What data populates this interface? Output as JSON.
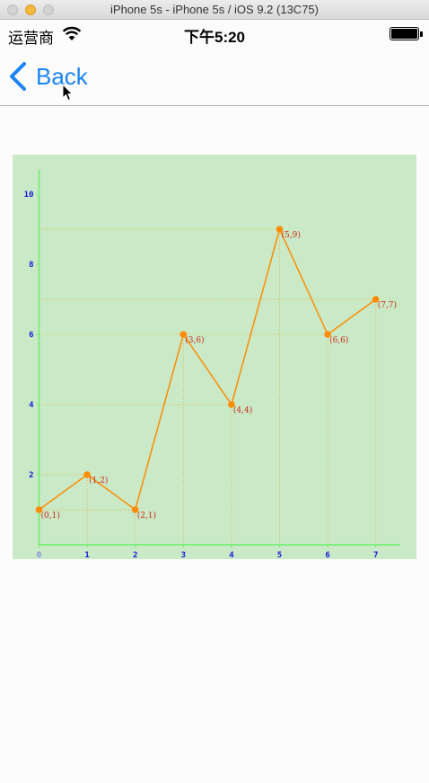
{
  "window": {
    "title": "iPhone 5s - iPhone 5s / iOS 9.2 (13C75)"
  },
  "status_bar": {
    "carrier": "运营商",
    "time": "下午5:20"
  },
  "nav": {
    "back_label": "Back"
  },
  "colors": {
    "chart_background": "#c9e9c7",
    "axis": "#6ef06a",
    "line": "#ff8c00",
    "point": "#ff8c00",
    "grid": "#e8b84a",
    "tick_text": "#1a1ad6",
    "point_label": "#d02a1a",
    "link": "#1a84f7"
  },
  "chart_data": {
    "type": "line",
    "x": [
      0,
      1,
      2,
      3,
      4,
      5,
      6,
      7
    ],
    "y": [
      1,
      2,
      1,
      6,
      4,
      9,
      6,
      7
    ],
    "point_labels": [
      "(0,1)",
      "(1,2)",
      "(2,1)",
      "(3,6)",
      "(4,4)",
      "(5,9)",
      "(6,6)",
      "(7,7)"
    ],
    "xticks": [
      "0",
      "1",
      "2",
      "3",
      "4",
      "5",
      "6",
      "7"
    ],
    "yticks": [
      "2",
      "4",
      "6",
      "8",
      "10"
    ],
    "ytick_values": [
      2,
      4,
      6,
      8,
      10
    ],
    "xlim": [
      0,
      7.5
    ],
    "ylim": [
      0,
      10.7
    ],
    "title": "",
    "xlabel": "",
    "ylabel": "",
    "grid": "dotted drop lines from each point to the axes"
  }
}
